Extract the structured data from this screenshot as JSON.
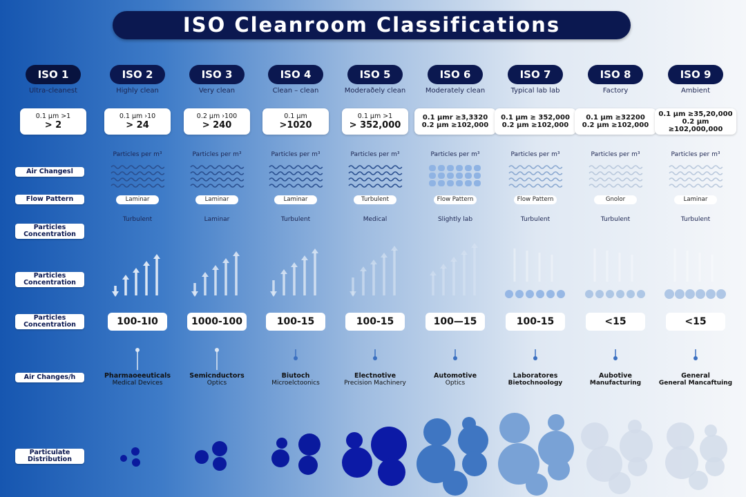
{
  "title": "ISO Cleanroom Classifications",
  "row_labels": [
    "Air Changesl",
    "Flow Pattern",
    "Particles Concentration",
    "Particles Concentration",
    "Particles Concentration",
    "Air Changes/h",
    "Particulate Distribution"
  ],
  "columns": [
    {
      "name": "ISO 1",
      "subtitle": "Ultra-cleanest",
      "box": [
        "0.1 µm >1",
        "> 2"
      ]
    },
    {
      "name": "ISO 2",
      "subtitle": "Highly clean",
      "box": [
        "0.1 µm ›10",
        "> 24"
      ],
      "particles": "Particles per m³",
      "flow": "Laminar",
      "flow_note": "Turbulent",
      "concentration": "100-1I0",
      "application": [
        "Pharmaoeeuticals",
        "Medical Devices"
      ]
    },
    {
      "name": "ISO 3",
      "subtitle": "Very clean",
      "box": [
        "0.2 µm ›100",
        "> 240"
      ],
      "particles": "Particles per m³",
      "flow": "Laminar",
      "flow_note": "Laminar",
      "concentration": "1000-100",
      "application": [
        "Semicnductors",
        "Optics"
      ]
    },
    {
      "name": "ISO 4",
      "subtitle": "Clean – clean",
      "box": [
        "0.1 µm",
        ">1020"
      ],
      "particles": "Particles per m³",
      "flow": "Laminar",
      "flow_note": "Turbulent",
      "concentration": "100-15",
      "application": [
        "Biutoch",
        "Microelctoonics"
      ]
    },
    {
      "name": "ISO 5",
      "subtitle": "Moderaðely clean",
      "box": [
        "0.1 µm >1",
        "> 352,000"
      ],
      "particles": "Particles per m³",
      "flow": "Turbulent",
      "flow_note": "Medical",
      "concentration": "100-15",
      "application": [
        "Electnotive",
        "Precision Machinery"
      ]
    },
    {
      "name": "ISO 6",
      "subtitle": "Moderately clean",
      "box": [
        "0.1 µmr ≥3,3320",
        "0.2 µm ≥102,000"
      ],
      "particles": "Particles per m³",
      "flow": "Flow Pattern",
      "flow_note": "Slightly lab",
      "concentration": "100—15",
      "application": [
        "Automotive",
        "Optics"
      ]
    },
    {
      "name": "ISO 7",
      "subtitle": "Typical lab lab",
      "box": [
        "0.1 µm ≥ 352,000",
        "0.2 µm ≥102,000"
      ],
      "particles": "Particles per m³",
      "flow": "Flow Pattern",
      "flow_note": "Turbulent",
      "concentration": "100-15",
      "application": [
        "Laboratores",
        "Bietochnoology"
      ]
    },
    {
      "name": "ISO 8",
      "subtitle": "Factory",
      "box": [
        "0.1 µm ≥32200",
        "0.2 µm ≥102,000"
      ],
      "particles": "Particles per m³",
      "flow": "Gnolor",
      "flow_note": "Turbulent",
      "concentration": "<15",
      "application": [
        "Aubotive",
        "Manufacturing"
      ]
    },
    {
      "name": "ISO 9",
      "subtitle": "Ambient",
      "box": [
        "0.1 µm ≥35,20,000",
        "0.2 µm ≥102,000,000"
      ],
      "particles": "Particles per m³",
      "flow": "Laminar",
      "flow_note": "Turbulent",
      "concentration": "<15",
      "application": [
        "General",
        "General Mancaftuing"
      ]
    }
  ]
}
